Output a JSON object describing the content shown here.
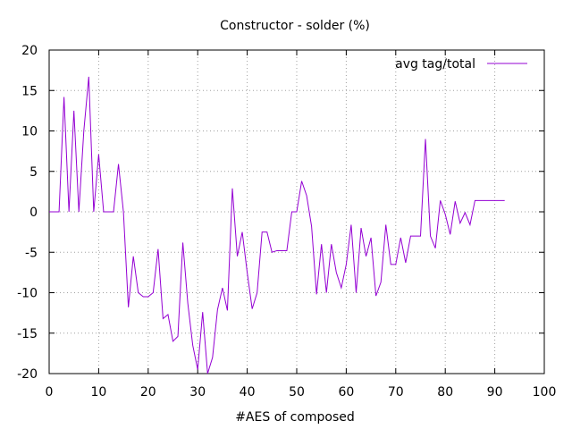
{
  "chart_data": {
    "type": "line",
    "title": "Constructor - solder (%)",
    "xlabel": "#AES of composed",
    "ylabel": "",
    "xlim": [
      0,
      100
    ],
    "ylim": [
      -20,
      20
    ],
    "xticks": [
      0,
      10,
      20,
      30,
      40,
      50,
      60,
      70,
      80,
      90,
      100
    ],
    "yticks": [
      -20,
      -15,
      -10,
      -5,
      0,
      5,
      10,
      15,
      20
    ],
    "grid": true,
    "legend_position": "top-right",
    "series": [
      {
        "name": "avg tag/total",
        "color": "#9400d3",
        "x": [
          0,
          1,
          2,
          3,
          4,
          5,
          6,
          7,
          8,
          9,
          10,
          11,
          12,
          13,
          14,
          15,
          16,
          17,
          18,
          19,
          20,
          21,
          22,
          23,
          24,
          25,
          26,
          27,
          28,
          29,
          30,
          31,
          32,
          33,
          34,
          35,
          36,
          37,
          38,
          39,
          40,
          41,
          42,
          43,
          44,
          45,
          46,
          47,
          48,
          49,
          50,
          51,
          52,
          53,
          54,
          55,
          56,
          57,
          58,
          59,
          60,
          61,
          62,
          63,
          64,
          65,
          66,
          67,
          68,
          69,
          70,
          71,
          72,
          73,
          74,
          75,
          76,
          77,
          78,
          79,
          80,
          81,
          82,
          83,
          84,
          85,
          86,
          87,
          88,
          89,
          90,
          91,
          92
        ],
        "y": [
          0,
          0,
          0,
          14.2,
          0,
          12.5,
          0,
          10,
          16.7,
          0,
          7.1,
          0,
          0,
          0,
          5.9,
          0,
          -11.8,
          -5.5,
          -10,
          -10.5,
          -10.5,
          -10,
          -4.6,
          -13.2,
          -12.7,
          -16,
          -15.4,
          -3.8,
          -11.3,
          -16.5,
          -19.5,
          -12.4,
          -20,
          -18,
          -12.1,
          -9.4,
          -12.2,
          2.9,
          -5.5,
          -2.5,
          -7.5,
          -12,
          -10,
          -2.5,
          -2.5,
          -5,
          -4.8,
          -4.8,
          -4.8,
          0,
          0,
          3.8,
          2,
          -1.8,
          -10.2,
          -4,
          -10,
          -4,
          -7.5,
          -9.4,
          -6.5,
          -1.6,
          -10,
          -2,
          -5.5,
          -3.2,
          -10.4,
          -8.7,
          -1.6,
          -6.5,
          -6.5,
          -3.2,
          -6.3,
          -3,
          -3,
          -3,
          9,
          -3,
          -4.5,
          1.4,
          -0.3,
          -2.8,
          1.3,
          -1.4,
          -0.1,
          -1.6,
          1.4,
          1.4,
          1.4,
          1.4,
          1.4,
          1.4,
          1.4
        ]
      }
    ]
  }
}
